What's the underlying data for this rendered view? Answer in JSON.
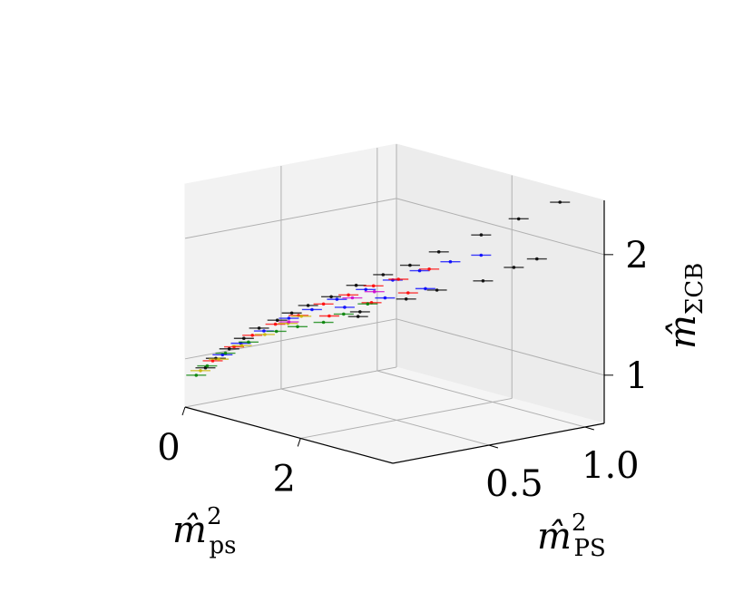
{
  "chart_data": {
    "type": "scatter",
    "projection": "3d",
    "title": "",
    "axes": {
      "x": {
        "label": "m̂",
        "label_sup": "2",
        "label_sub": "ps",
        "ticks": [
          0,
          2
        ],
        "tick_labels": [
          "0",
          "2"
        ],
        "range": [
          0,
          3.6
        ]
      },
      "y": {
        "label": "m̂",
        "label_sup": "2",
        "label_sub": "PS",
        "ticks": [
          0.5,
          1.0
        ],
        "tick_labels": [
          "0.5",
          "1.0"
        ],
        "range": [
          0,
          1.1
        ]
      },
      "z": {
        "label": "m̂",
        "label_sub": "ΣCB",
        "ticks": [
          1,
          2
        ],
        "tick_labels": [
          "1",
          "2"
        ],
        "range": [
          0.6,
          2.45
        ]
      }
    },
    "grid": true,
    "error_bars": "horizontal",
    "series": [
      {
        "color": "#000000",
        "points": [
          [
            0.12,
            0.07,
            0.92
          ],
          [
            0.2,
            0.1,
            1.0
          ],
          [
            0.3,
            0.14,
            1.08
          ],
          [
            0.42,
            0.18,
            1.17
          ],
          [
            0.55,
            0.22,
            1.26
          ],
          [
            0.7,
            0.27,
            1.33
          ],
          [
            0.85,
            0.3,
            1.4
          ],
          [
            1.0,
            0.34,
            1.47
          ],
          [
            1.2,
            0.4,
            1.55
          ],
          [
            1.4,
            0.47,
            1.65
          ],
          [
            1.6,
            0.55,
            1.74
          ],
          [
            1.8,
            0.63,
            1.82
          ],
          [
            2.0,
            0.72,
            1.93
          ],
          [
            2.3,
            0.85,
            2.07
          ],
          [
            2.55,
            0.97,
            2.2
          ],
          [
            2.9,
            1.08,
            2.35
          ],
          [
            1.2,
            0.55,
            1.38
          ],
          [
            1.5,
            0.7,
            1.48
          ],
          [
            1.7,
            0.8,
            1.55
          ],
          [
            2.0,
            0.95,
            1.62
          ],
          [
            2.3,
            1.02,
            1.75
          ],
          [
            2.6,
            1.05,
            1.85
          ],
          [
            1.0,
            0.6,
            1.3
          ]
        ]
      },
      {
        "color": "#0000ff",
        "points": [
          [
            0.25,
            0.12,
            1.03
          ],
          [
            0.4,
            0.17,
            1.13
          ],
          [
            0.6,
            0.23,
            1.24
          ],
          [
            0.8,
            0.3,
            1.35
          ],
          [
            1.0,
            0.36,
            1.43
          ],
          [
            1.2,
            0.43,
            1.52
          ],
          [
            1.4,
            0.52,
            1.6
          ],
          [
            1.6,
            0.6,
            1.68
          ],
          [
            1.8,
            0.68,
            1.76
          ],
          [
            2.0,
            0.78,
            1.83
          ],
          [
            2.2,
            0.88,
            1.88
          ],
          [
            1.1,
            0.5,
            1.42
          ],
          [
            1.4,
            0.62,
            1.5
          ],
          [
            1.7,
            0.74,
            1.58
          ]
        ]
      },
      {
        "color": "#ff0000",
        "points": [
          [
            0.18,
            0.09,
            0.98
          ],
          [
            0.35,
            0.15,
            1.1
          ],
          [
            0.5,
            0.2,
            1.2
          ],
          [
            0.7,
            0.26,
            1.3
          ],
          [
            0.9,
            0.32,
            1.38
          ],
          [
            1.1,
            0.39,
            1.48
          ],
          [
            1.3,
            0.46,
            1.56
          ],
          [
            1.5,
            0.53,
            1.64
          ],
          [
            1.7,
            0.6,
            1.7
          ],
          [
            1.9,
            0.7,
            1.78
          ],
          [
            1.0,
            0.45,
            1.35
          ],
          [
            1.3,
            0.58,
            1.46
          ],
          [
            1.6,
            0.68,
            1.55
          ]
        ]
      },
      {
        "color": "#008000",
        "points": [
          [
            0.06,
            0.04,
            0.86
          ],
          [
            0.15,
            0.07,
            0.94
          ],
          [
            0.3,
            0.12,
            1.05
          ],
          [
            0.5,
            0.18,
            1.15
          ],
          [
            0.75,
            0.25,
            1.25
          ],
          [
            0.95,
            0.3,
            1.3
          ],
          [
            1.2,
            0.36,
            1.35
          ],
          [
            1.35,
            0.42,
            1.42
          ],
          [
            1.5,
            0.5,
            1.5
          ]
        ]
      },
      {
        "color": "#c8b400",
        "points": [
          [
            0.1,
            0.05,
            0.9
          ],
          [
            0.25,
            0.1,
            1.0
          ],
          [
            0.45,
            0.16,
            1.12
          ],
          [
            0.65,
            0.22,
            1.22
          ],
          [
            0.85,
            0.28,
            1.32
          ],
          [
            0.95,
            0.32,
            1.38
          ]
        ]
      },
      {
        "color": "#cc00cc",
        "points": [
          [
            0.8,
            0.3,
            1.32
          ],
          [
            1.3,
            0.48,
            1.53
          ],
          [
            1.45,
            0.55,
            1.58
          ]
        ]
      }
    ]
  }
}
